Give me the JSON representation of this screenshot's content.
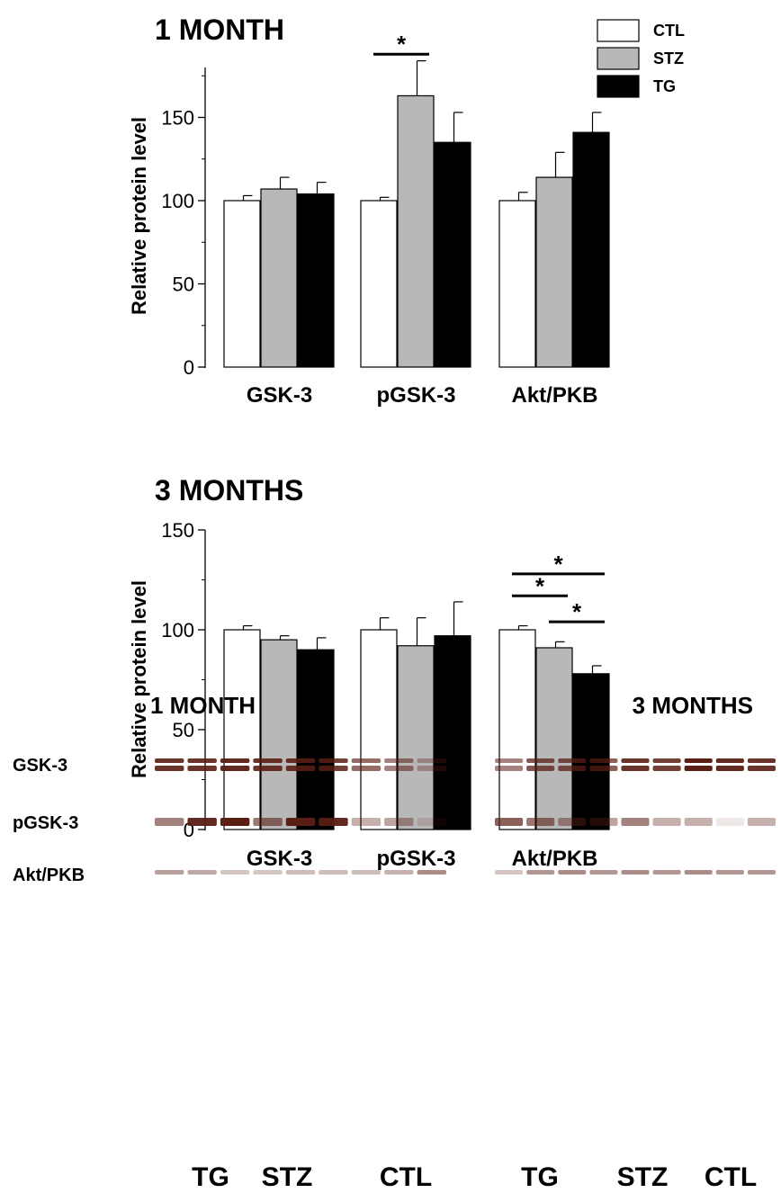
{
  "colors": {
    "CTL": "#ffffff",
    "STZ": "#b8b8b8",
    "TG": "#000000",
    "band": "#5a1e14"
  },
  "legend": [
    "CTL",
    "STZ",
    "TG"
  ],
  "chart_data": [
    {
      "type": "bar",
      "title": "1 MONTH",
      "ylabel": "Relative protein level",
      "ylim": [
        0,
        180
      ],
      "yticks": [
        0,
        50,
        100,
        150
      ],
      "categories": [
        "GSK-3",
        "pGSK-3",
        "Akt/PKB"
      ],
      "series": [
        {
          "name": "CTL",
          "values": [
            100,
            100,
            100
          ],
          "errors": [
            3,
            2,
            5
          ]
        },
        {
          "name": "STZ",
          "values": [
            107,
            163,
            114
          ],
          "errors": [
            7,
            21,
            15
          ]
        },
        {
          "name": "TG",
          "values": [
            104,
            135,
            141
          ],
          "errors": [
            7,
            18,
            12
          ]
        }
      ],
      "annotations": [
        {
          "text": "*",
          "category": "pGSK-3",
          "from": "CTL",
          "to": "STZ",
          "y": 188
        }
      ]
    },
    {
      "type": "bar",
      "title": "3 MONTHS",
      "ylabel": "Relative protein level",
      "ylim": [
        0,
        150
      ],
      "yticks": [
        0,
        50,
        100,
        150
      ],
      "categories": [
        "GSK-3",
        "pGSK-3",
        "Akt/PKB"
      ],
      "series": [
        {
          "name": "CTL",
          "values": [
            100,
            100,
            100
          ],
          "errors": [
            2,
            6,
            2
          ]
        },
        {
          "name": "STZ",
          "values": [
            95,
            92,
            91
          ],
          "errors": [
            2,
            14,
            3
          ]
        },
        {
          "name": "TG",
          "values": [
            90,
            97,
            78
          ],
          "errors": [
            6,
            17,
            4
          ]
        }
      ],
      "annotations": [
        {
          "text": "*",
          "category": "Akt/PKB",
          "from": "CTL",
          "to": "TG",
          "y": 128
        },
        {
          "text": "*",
          "category": "Akt/PKB",
          "from": "CTL",
          "to": "STZ",
          "y": 117
        },
        {
          "text": "*",
          "category": "Akt/PKB",
          "from": "STZ",
          "to": "TG",
          "y": 104
        }
      ]
    }
  ],
  "blots": {
    "row_labels": [
      "GSK-3",
      "pGSK-3",
      "Akt/PKB"
    ],
    "panels": [
      {
        "title": "1 MONTH",
        "group_labels": [
          "TG",
          "STZ",
          "CTL"
        ],
        "band_intensity": [
          [
            0.9,
            0.9,
            0.95,
            0.9,
            0.9,
            0.85,
            0.65,
            0.55,
            0.35
          ],
          [
            0.55,
            0.95,
            1.0,
            0.6,
            1.0,
            0.95,
            0.35,
            0.4,
            0.15
          ],
          [
            0.5,
            0.45,
            0.3,
            0.3,
            0.35,
            0.35,
            0.35,
            0.4,
            0.6
          ]
        ]
      },
      {
        "title": "3 MONTHS",
        "group_labels": [
          "TG",
          "STZ",
          "CTL"
        ],
        "band_intensity": [
          [
            0.55,
            0.75,
            0.75,
            0.7,
            0.9,
            0.85,
            1.0,
            0.95,
            0.9
          ],
          [
            0.7,
            0.6,
            0.45,
            0.4,
            0.55,
            0.35,
            0.35,
            0.1,
            0.35
          ],
          [
            0.3,
            0.55,
            0.6,
            0.55,
            0.6,
            0.55,
            0.6,
            0.55,
            0.55
          ]
        ]
      }
    ]
  }
}
